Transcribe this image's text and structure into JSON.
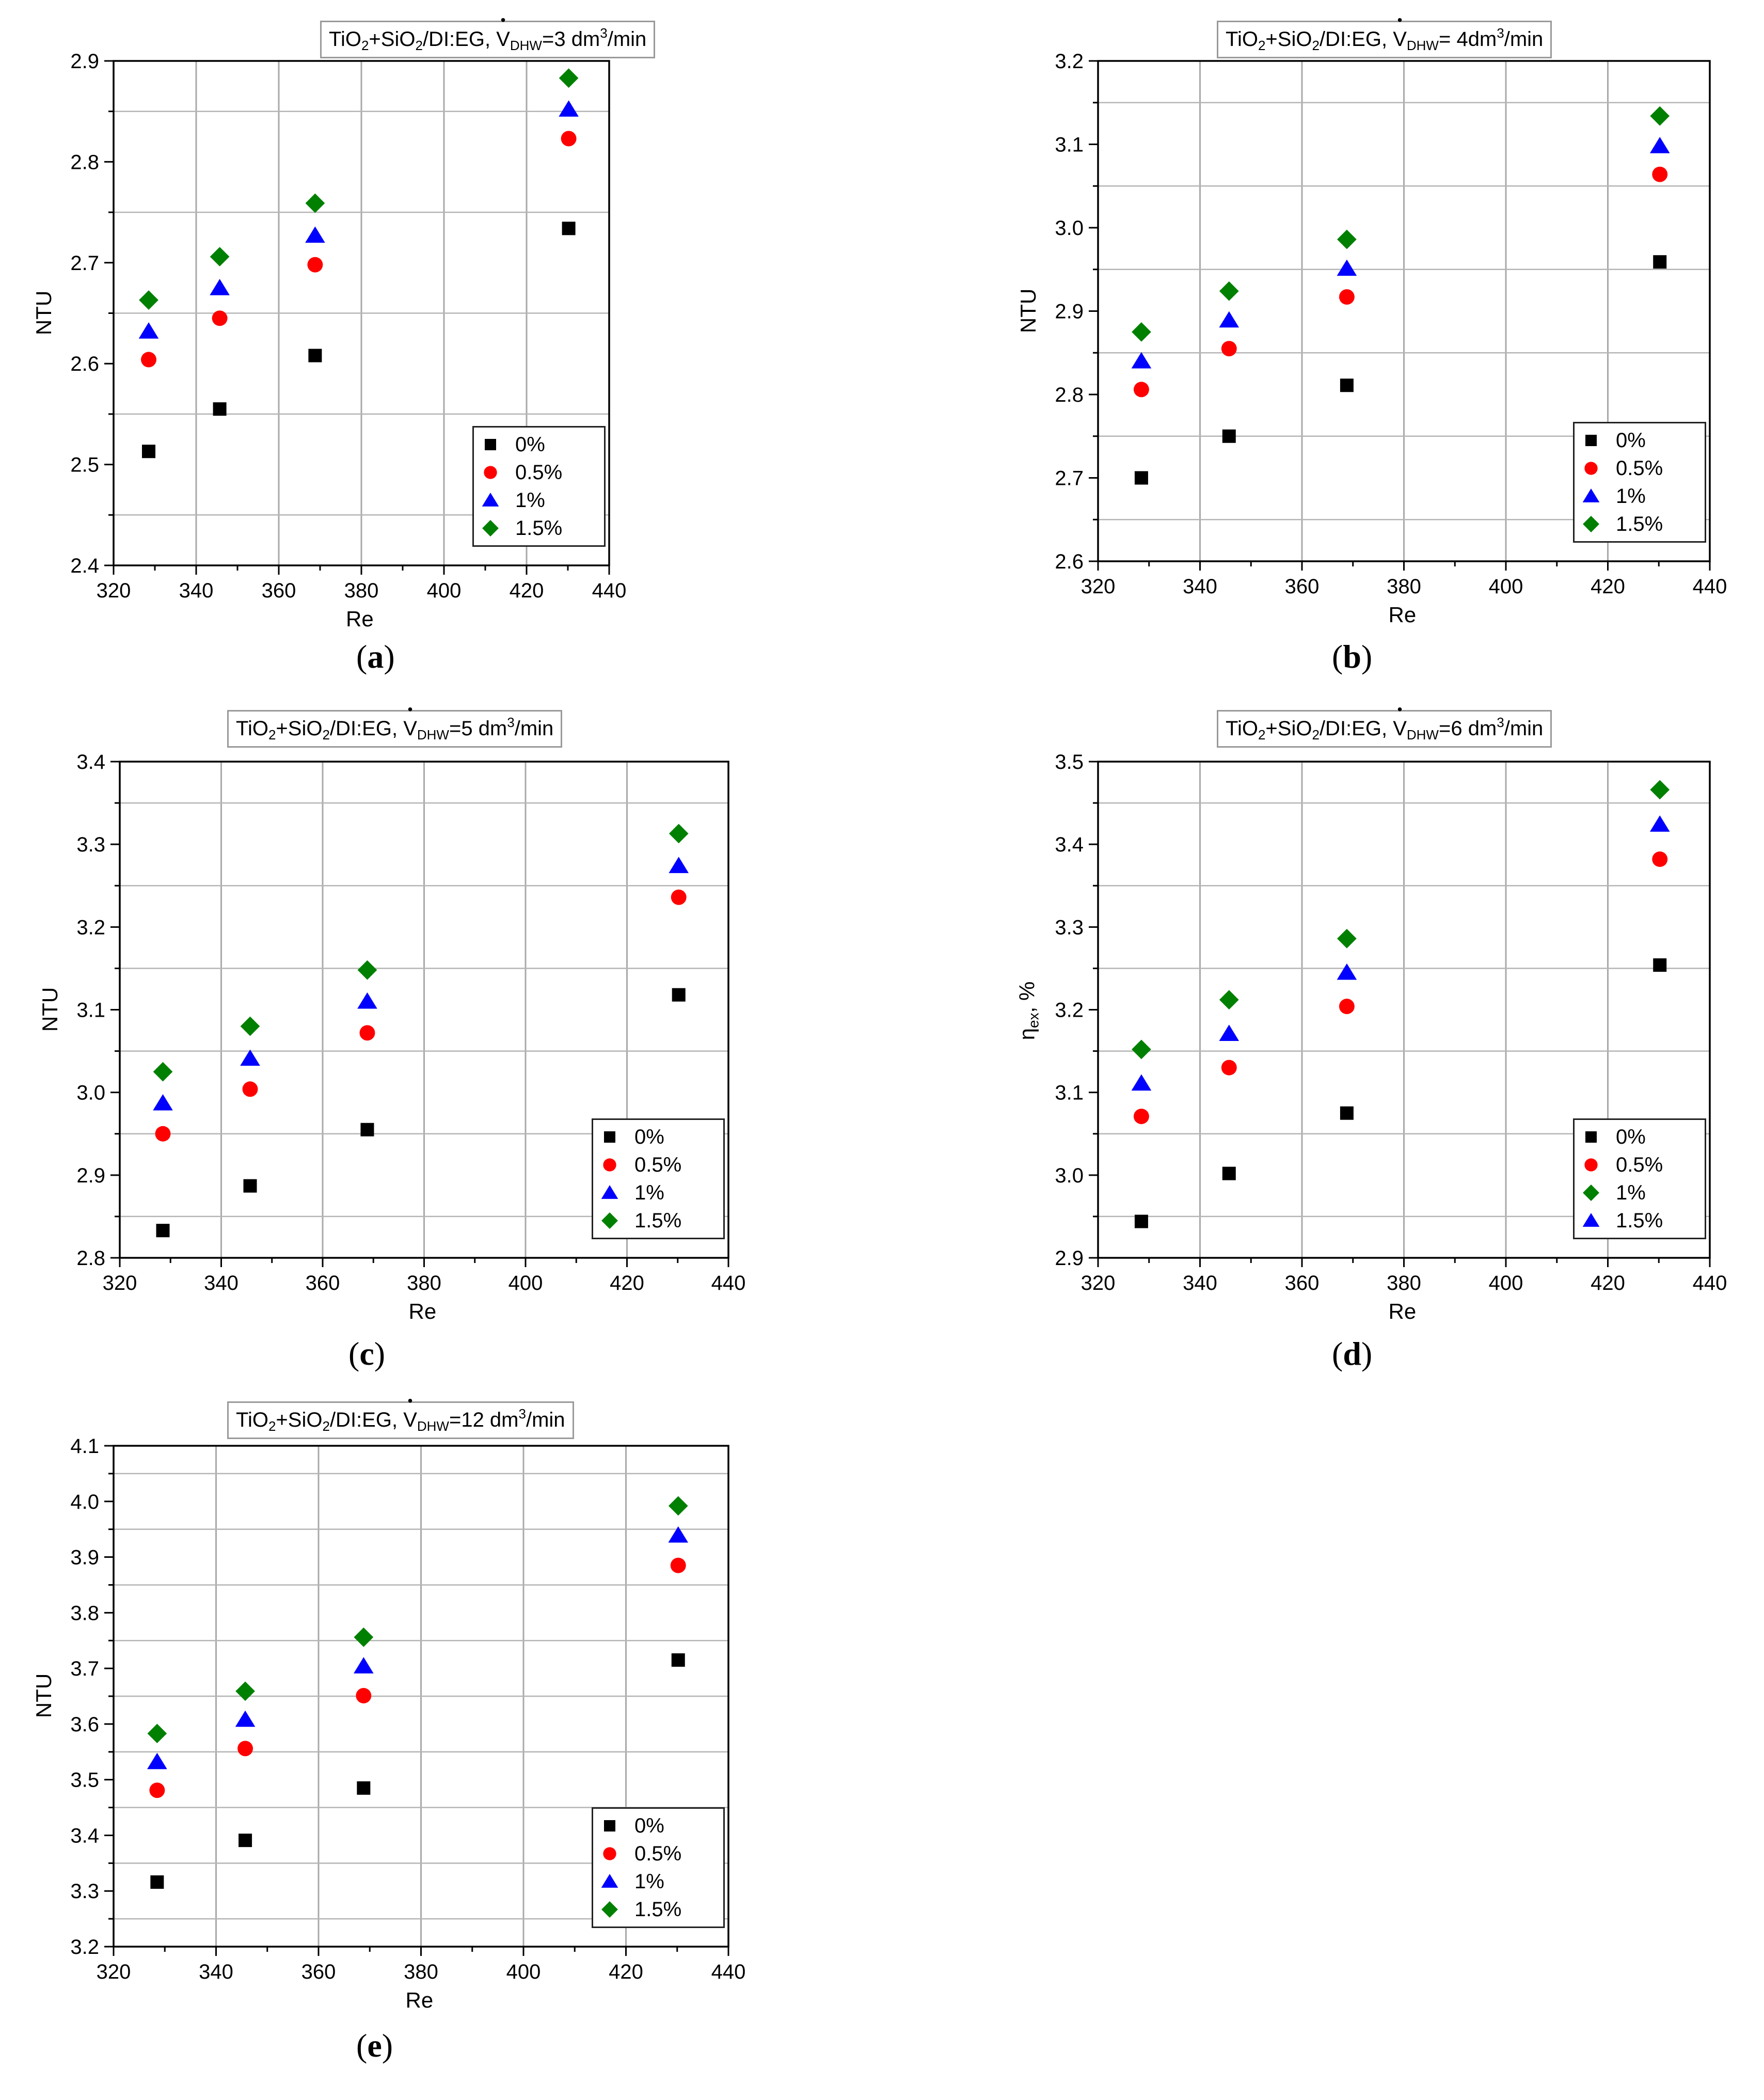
{
  "chart_data": [
    {
      "type": "scatter",
      "caption": "a",
      "title_parts": {
        "a": "TiO",
        "b": "2",
        "c": "+SiO",
        "d": "2",
        "e": "/DI:EG, ",
        "v": "V",
        "sub": "DHW",
        "eq": "=3 dm",
        "sup": "3",
        "tail": "/min"
      },
      "xlabel": "Re",
      "ylabel": "NTU",
      "ylabel_sub": "",
      "ylabel_tail": "",
      "xlim": [
        320,
        440
      ],
      "ylim": [
        2.4,
        2.9
      ],
      "xticks": [
        "320",
        "340",
        "360",
        "380",
        "400",
        "420",
        "440"
      ],
      "yticks": [
        "2.4",
        "2.5",
        "2.6",
        "2.7",
        "2.8",
        "2.9"
      ],
      "x": [
        328.5,
        345.7,
        368.8,
        430.2
      ],
      "series": [
        {
          "name": "0%",
          "marker": "square",
          "color": "#000000",
          "values": [
            2.513,
            2.555,
            2.608,
            2.734
          ]
        },
        {
          "name": "0.5%",
          "marker": "circle",
          "color": "#ff0000",
          "values": [
            2.604,
            2.645,
            2.698,
            2.823
          ]
        },
        {
          "name": "1%",
          "marker": "triangle",
          "color": "#0000ff",
          "values": [
            2.632,
            2.675,
            2.727,
            2.852
          ]
        },
        {
          "name": "1.5%",
          "marker": "diamond",
          "color": "#008000",
          "values": [
            2.663,
            2.706,
            2.759,
            2.883
          ]
        }
      ]
    },
    {
      "type": "scatter",
      "caption": "b",
      "title_parts": {
        "a": "TiO",
        "b": "2",
        "c": "+SiO",
        "d": "2",
        "e": "/DI:EG, ",
        "v": "V",
        "sub": "DHW",
        "eq": "= 4dm",
        "sup": "3",
        "tail": "/min"
      },
      "xlabel": "Re",
      "ylabel": "NTU",
      "ylabel_sub": "",
      "ylabel_tail": "",
      "xlim": [
        320,
        440
      ],
      "ylim": [
        2.6,
        3.2
      ],
      "xticks": [
        "320",
        "340",
        "360",
        "380",
        "400",
        "420",
        "440"
      ],
      "yticks": [
        "2.6",
        "2.7",
        "2.8",
        "2.9",
        "3.0",
        "3.1",
        "3.2"
      ],
      "x": [
        328.5,
        345.7,
        368.8,
        430.2
      ],
      "series": [
        {
          "name": "0%",
          "marker": "square",
          "color": "#000000",
          "values": [
            2.7,
            2.75,
            2.811,
            2.959
          ]
        },
        {
          "name": "0.5%",
          "marker": "circle",
          "color": "#ff0000",
          "values": [
            2.806,
            2.855,
            2.917,
            3.064
          ]
        },
        {
          "name": "1%",
          "marker": "triangle",
          "color": "#0000ff",
          "values": [
            2.84,
            2.889,
            2.951,
            3.098
          ]
        },
        {
          "name": "1.5%",
          "marker": "diamond",
          "color": "#008000",
          "values": [
            2.875,
            2.924,
            2.986,
            3.134
          ]
        }
      ]
    },
    {
      "type": "scatter",
      "caption": "c",
      "title_parts": {
        "a": "TiO",
        "b": "2",
        "c": "+SiO",
        "d": "2",
        "e": "/DI:EG, ",
        "v": "V",
        "sub": "DHW",
        "eq": "=5 dm",
        "sup": "3",
        "tail": "/min"
      },
      "xlabel": "Re",
      "ylabel": "NTU",
      "ylabel_sub": "",
      "ylabel_tail": "",
      "xlim": [
        320,
        440
      ],
      "ylim": [
        2.8,
        3.4
      ],
      "xticks": [
        "320",
        "340",
        "360",
        "380",
        "400",
        "420",
        "440"
      ],
      "yticks": [
        "2.8",
        "2.9",
        "3.0",
        "3.1",
        "3.2",
        "3.3",
        "3.4"
      ],
      "x": [
        328.5,
        345.7,
        368.8,
        430.2
      ],
      "series": [
        {
          "name": "0%",
          "marker": "square",
          "color": "#000000",
          "values": [
            2.833,
            2.887,
            2.955,
            3.118
          ]
        },
        {
          "name": "0.5%",
          "marker": "circle",
          "color": "#ff0000",
          "values": [
            2.95,
            3.004,
            3.072,
            3.236
          ]
        },
        {
          "name": "1%",
          "marker": "triangle",
          "color": "#0000ff",
          "values": [
            2.987,
            3.041,
            3.11,
            3.274
          ]
        },
        {
          "name": "1.5%",
          "marker": "diamond",
          "color": "#008000",
          "values": [
            3.025,
            3.08,
            3.148,
            3.313
          ]
        }
      ]
    },
    {
      "type": "scatter",
      "caption": "d",
      "title_parts": {
        "a": "TiO",
        "b": "2",
        "c": "+SiO",
        "d": "2",
        "e": "/DI:EG, ",
        "v": "V",
        "sub": "DHW",
        "eq": "=6 dm",
        "sup": "3",
        "tail": "/min"
      },
      "xlabel": "Re",
      "ylabel": "η",
      "ylabel_sub": "ex",
      "ylabel_tail": ", %",
      "xlim": [
        320,
        440
      ],
      "ylim": [
        2.9,
        3.5
      ],
      "xticks": [
        "320",
        "340",
        "360",
        "380",
        "400",
        "420",
        "440"
      ],
      "yticks": [
        "2.9",
        "3.0",
        "3.1",
        "3.2",
        "3.3",
        "3.4",
        "3.5"
      ],
      "x": [
        328.5,
        345.7,
        368.8,
        430.2
      ],
      "series": [
        {
          "name": "0%",
          "marker": "square",
          "color": "#000000",
          "values": [
            2.944,
            3.002,
            3.075,
            3.254
          ]
        },
        {
          "name": "0.5%",
          "marker": "circle",
          "color": "#ff0000",
          "values": [
            3.071,
            3.13,
            3.204,
            3.382
          ]
        },
        {
          "name": "1%",
          "marker": "diamond",
          "color": "#008000",
          "values": [
            3.152,
            3.212,
            3.286,
            3.466
          ]
        },
        {
          "name": "1.5%",
          "marker": "triangle",
          "color": "#0000ff",
          "values": [
            3.111,
            3.171,
            3.245,
            3.424
          ]
        }
      ]
    },
    {
      "type": "scatter",
      "caption": "e",
      "title_parts": {
        "a": "TiO",
        "b": "2",
        "c": "+SiO",
        "d": "2",
        "e": "/DI:EG, ",
        "v": "V",
        "sub": "DHW",
        "eq": "=12 dm",
        "sup": "3",
        "tail": "/min"
      },
      "xlabel": "Re",
      "ylabel": "NTU",
      "ylabel_sub": "",
      "ylabel_tail": "",
      "xlim": [
        320,
        440
      ],
      "ylim": [
        3.2,
        4.1
      ],
      "xticks": [
        "320",
        "340",
        "360",
        "380",
        "400",
        "420",
        "440"
      ],
      "yticks": [
        "3.2",
        "3.3",
        "3.4",
        "3.5",
        "3.6",
        "3.7",
        "3.8",
        "3.9",
        "4.0",
        "4.1"
      ],
      "x": [
        328.5,
        345.7,
        368.8,
        430.2
      ],
      "series": [
        {
          "name": "0%",
          "marker": "square",
          "color": "#000000",
          "values": [
            3.316,
            3.391,
            3.485,
            3.715
          ]
        },
        {
          "name": "0.5%",
          "marker": "circle",
          "color": "#ff0000",
          "values": [
            3.481,
            3.556,
            3.651,
            3.885
          ]
        },
        {
          "name": "1%",
          "marker": "triangle",
          "color": "#0000ff",
          "values": [
            3.532,
            3.608,
            3.704,
            3.939
          ]
        },
        {
          "name": "1.5%",
          "marker": "diamond",
          "color": "#008000",
          "values": [
            3.583,
            3.659,
            3.756,
            3.992
          ]
        }
      ]
    }
  ]
}
